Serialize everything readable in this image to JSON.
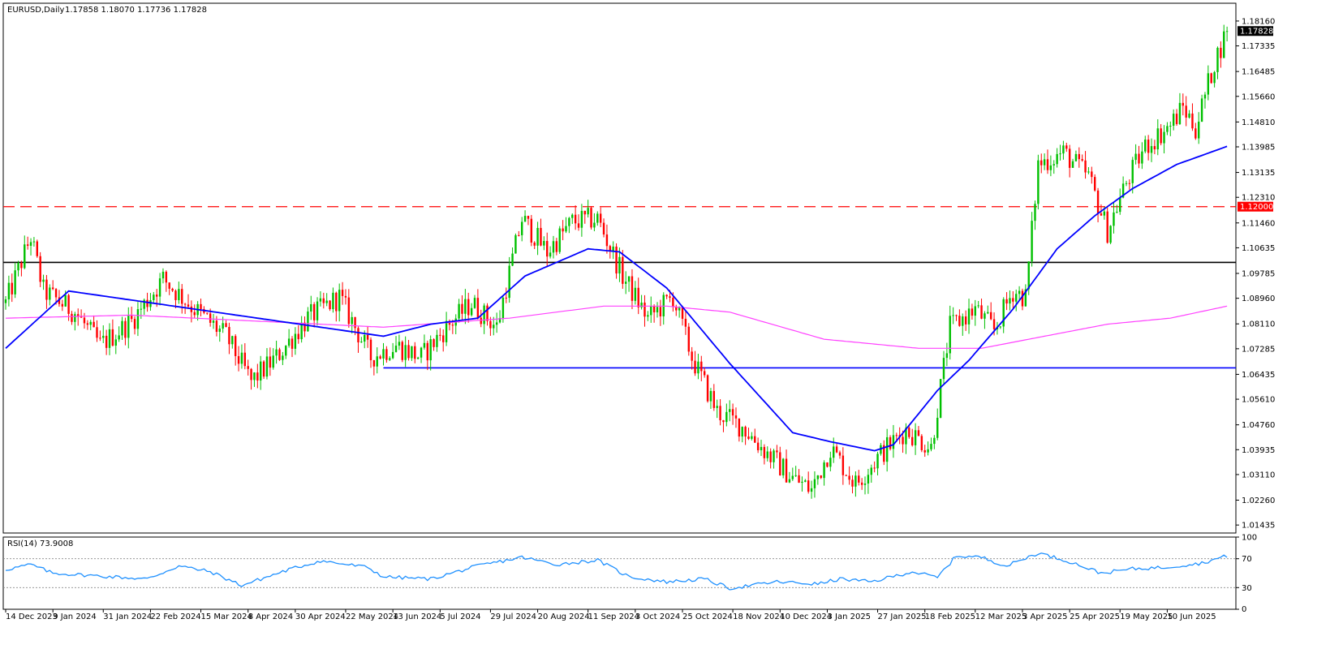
{
  "header": {
    "symbol": "EURUSD,Daily",
    "ohlc": "1.17858 1.18070 1.17736 1.17828"
  },
  "rsi_header": {
    "label": "RSI(14) 73.9008"
  },
  "colors": {
    "bull": "#00c000",
    "bear": "#ff0000",
    "ma_fast": "#0000ff",
    "ma_slow": "#ff40ff",
    "rsi": "#1e90ff",
    "resistance": "#ff0000",
    "pivot": "#000000",
    "support": "#0000ff"
  },
  "chart_data": {
    "type": "candlestick",
    "symbol": "EURUSD",
    "timeframe": "Daily",
    "ylim": [
      1.0117,
      1.1875
    ],
    "y_ticks": [
      "1.18160",
      "1.17335",
      "1.16485",
      "1.15660",
      "1.14810",
      "1.13985",
      "1.13135",
      "1.12310",
      "1.11460",
      "1.10635",
      "1.09785",
      "1.08960",
      "1.08110",
      "1.07285",
      "1.06435",
      "1.05610",
      "1.04760",
      "1.03935",
      "1.03110",
      "1.02260",
      "1.01435"
    ],
    "x_ticks": [
      "14 Dec 2023",
      "9 Jan 2024",
      "31 Jan 2024",
      "22 Feb 2024",
      "15 Mar 2024",
      "8 Apr 2024",
      "30 Apr 2024",
      "22 May 2024",
      "13 Jun 2024",
      "5 Jul 2024",
      "29 Jul 2024",
      "20 Aug 2024",
      "11 Sep 2024",
      "3 Oct 2024",
      "25 Oct 2024",
      "18 Nov 2024",
      "10 Dec 2024",
      "3 Jan 2025",
      "27 Jan 2025",
      "18 Feb 2025",
      "12 Mar 2025",
      "3 Apr 2025",
      "25 Apr 2025",
      "19 May 2025",
      "10 Jun 2025"
    ],
    "price_path": [
      [
        0,
        1.088
      ],
      [
        8,
        1.11
      ],
      [
        12,
        1.092
      ],
      [
        22,
        1.085
      ],
      [
        30,
        1.074
      ],
      [
        40,
        1.082
      ],
      [
        50,
        1.096
      ],
      [
        60,
        1.086
      ],
      [
        70,
        1.077
      ],
      [
        78,
        1.062
      ],
      [
        86,
        1.07
      ],
      [
        96,
        1.083
      ],
      [
        106,
        1.09
      ],
      [
        116,
        1.07
      ],
      [
        124,
        1.074
      ],
      [
        132,
        1.07
      ],
      [
        140,
        1.08
      ],
      [
        148,
        1.088
      ],
      [
        156,
        1.08
      ],
      [
        164,
        1.116
      ],
      [
        172,
        1.105
      ],
      [
        180,
        1.115
      ],
      [
        188,
        1.116
      ],
      [
        196,
        1.097
      ],
      [
        204,
        1.083
      ],
      [
        212,
        1.09
      ],
      [
        218,
        1.07
      ],
      [
        226,
        1.052
      ],
      [
        234,
        1.047
      ],
      [
        242,
        1.038
      ],
      [
        250,
        1.03
      ],
      [
        256,
        1.026
      ],
      [
        262,
        1.04
      ],
      [
        270,
        1.028
      ],
      [
        278,
        1.038
      ],
      [
        286,
        1.046
      ],
      [
        294,
        1.04
      ],
      [
        300,
        1.08
      ],
      [
        308,
        1.086
      ],
      [
        314,
        1.079
      ],
      [
        320,
        1.092
      ],
      [
        324,
        1.09
      ],
      [
        328,
        1.134
      ],
      [
        336,
        1.138
      ],
      [
        344,
        1.13
      ],
      [
        350,
        1.112
      ],
      [
        356,
        1.128
      ],
      [
        362,
        1.14
      ],
      [
        370,
        1.147
      ],
      [
        374,
        1.153
      ],
      [
        378,
        1.146
      ],
      [
        384,
        1.168
      ],
      [
        388,
        1.1783
      ]
    ],
    "ma_fast": {
      "name": "",
      "values": [
        [
          0,
          1.073
        ],
        [
          20,
          1.092
        ],
        [
          40,
          1.089
        ],
        [
          60,
          1.086
        ],
        [
          80,
          1.083
        ],
        [
          100,
          1.08
        ],
        [
          120,
          1.077
        ],
        [
          135,
          1.081
        ],
        [
          150,
          1.083
        ],
        [
          165,
          1.097
        ],
        [
          185,
          1.106
        ],
        [
          195,
          1.105
        ],
        [
          210,
          1.093
        ],
        [
          230,
          1.068
        ],
        [
          250,
          1.045
        ],
        [
          262,
          1.042
        ],
        [
          276,
          1.039
        ],
        [
          282,
          1.041
        ],
        [
          296,
          1.059
        ],
        [
          306,
          1.069
        ],
        [
          320,
          1.086
        ],
        [
          334,
          1.106
        ],
        [
          346,
          1.117
        ],
        [
          358,
          1.126
        ],
        [
          372,
          1.134
        ],
        [
          380,
          1.137
        ],
        [
          388,
          1.14
        ]
      ]
    },
    "ma_slow": {
      "name": "",
      "values": [
        [
          0,
          1.083
        ],
        [
          40,
          1.084
        ],
        [
          80,
          1.082
        ],
        [
          120,
          1.08
        ],
        [
          160,
          1.083
        ],
        [
          190,
          1.087
        ],
        [
          210,
          1.087
        ],
        [
          230,
          1.085
        ],
        [
          260,
          1.076
        ],
        [
          290,
          1.073
        ],
        [
          310,
          1.073
        ],
        [
          330,
          1.077
        ],
        [
          350,
          1.081
        ],
        [
          370,
          1.083
        ],
        [
          388,
          1.087
        ]
      ]
    },
    "levels": [
      {
        "kind": "resistance",
        "price": 1.12,
        "style": "dashed",
        "label": "1.12000"
      },
      {
        "kind": "pivot",
        "price": 1.1015,
        "style": "solid"
      },
      {
        "kind": "support",
        "price": 1.0665,
        "style": "solid",
        "x_start_bar": 120
      }
    ],
    "current_price": {
      "value": 1.17828,
      "label": "1.17828"
    },
    "rsi": {
      "period": 14,
      "value": 73.9008,
      "ylim": [
        0,
        100
      ],
      "levels": [
        30,
        70
      ],
      "y_ticks": [
        "100",
        "70",
        "30",
        "0"
      ],
      "path": [
        [
          0,
          55
        ],
        [
          8,
          62
        ],
        [
          15,
          50
        ],
        [
          30,
          46
        ],
        [
          45,
          42
        ],
        [
          55,
          60
        ],
        [
          65,
          52
        ],
        [
          75,
          33
        ],
        [
          90,
          55
        ],
        [
          100,
          67
        ],
        [
          115,
          58
        ],
        [
          120,
          45
        ],
        [
          135,
          42
        ],
        [
          150,
          60
        ],
        [
          164,
          72
        ],
        [
          175,
          62
        ],
        [
          188,
          68
        ],
        [
          198,
          45
        ],
        [
          210,
          38
        ],
        [
          222,
          42
        ],
        [
          230,
          29
        ],
        [
          245,
          38
        ],
        [
          258,
          35
        ],
        [
          265,
          42
        ],
        [
          275,
          38
        ],
        [
          288,
          52
        ],
        [
          296,
          44
        ],
        [
          302,
          74
        ],
        [
          310,
          72
        ],
        [
          318,
          60
        ],
        [
          328,
          78
        ],
        [
          338,
          66
        ],
        [
          348,
          50
        ],
        [
          358,
          56
        ],
        [
          368,
          58
        ],
        [
          380,
          64
        ],
        [
          388,
          74
        ]
      ]
    },
    "bar_count": 389
  }
}
